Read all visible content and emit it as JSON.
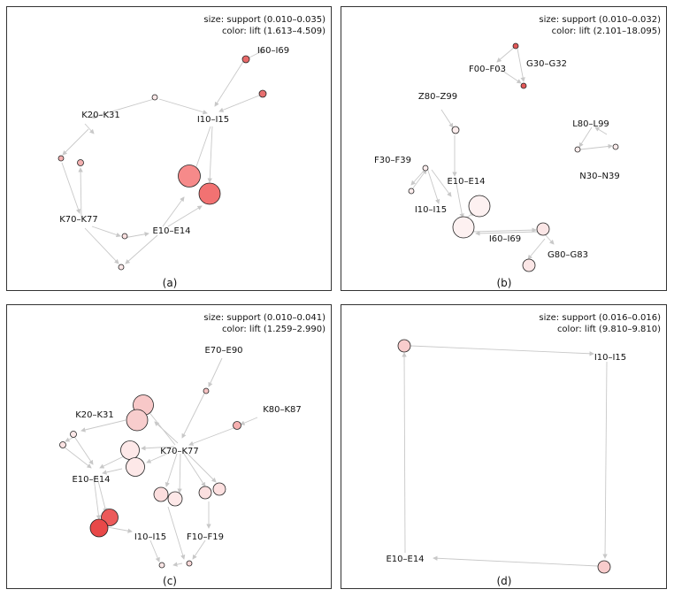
{
  "panels": [
    {
      "id": "a",
      "caption": "(a)",
      "legend": {
        "size": "size: support (0.010–0.035)",
        "color": "color: lift (1.613–4.509)"
      },
      "labels": [
        "I60–I69",
        "K20–K31",
        "I10–I15",
        "K70–K77",
        "E10–E14"
      ],
      "nodes": [
        {
          "c": "#e86a6a"
        },
        {
          "c": "#e87070"
        },
        {
          "c": "#fde8e8"
        },
        {
          "c": "#f4b1b1"
        },
        {
          "c": "#f3b0b0"
        },
        {
          "c": "#fbe0e0"
        },
        {
          "c": "#fde8e8"
        },
        {
          "c": "#f68a8a"
        },
        {
          "c": "#f27272"
        }
      ]
    },
    {
      "id": "b",
      "caption": "(b)",
      "legend": {
        "size": "size: support (0.010–0.032)",
        "color": "color: lift (2.101–18.095)"
      },
      "labels": [
        "F00–F03",
        "G30–G32",
        "Z80–Z99",
        "L80–L99",
        "F30–F39",
        "N30–N39",
        "E10–E14",
        "I10–I15",
        "I60–I69",
        "G80–G83"
      ],
      "nodes": [
        {
          "c": "#e25858"
        },
        {
          "c": "#e25858"
        },
        {
          "c": "#fcecec"
        },
        {
          "c": "#fcecec"
        },
        {
          "c": "#fcecec"
        },
        {
          "c": "#fcecec"
        },
        {
          "c": "#fcecec"
        },
        {
          "c": "#fdf1f1"
        },
        {
          "c": "#fdf1f1"
        },
        {
          "c": "#fbe6e6"
        },
        {
          "c": "#fbe6e6"
        }
      ]
    },
    {
      "id": "c",
      "caption": "(c)",
      "legend": {
        "size": "size: support (0.010–0.041)",
        "color": "color: lift (1.259–2.990)"
      },
      "labels": [
        "E70–E90",
        "K80–K87",
        "K20–K31",
        "K70–K77",
        "E10–E14",
        "I10–I15",
        "F10–F19"
      ],
      "nodes": [
        {
          "c": "#f6c2c2"
        },
        {
          "c": "#f6b0b0"
        },
        {
          "c": "#f8c8c8"
        },
        {
          "c": "#f8cdcd"
        },
        {
          "c": "#fde8e8"
        },
        {
          "c": "#fbe2e2"
        },
        {
          "c": "#fde8e8"
        },
        {
          "c": "#fde8e8"
        },
        {
          "c": "#fcdede"
        },
        {
          "c": "#fde8e8"
        },
        {
          "c": "#fbe0e0"
        },
        {
          "c": "#fde0e0"
        },
        {
          "c": "#ec5a5a"
        },
        {
          "c": "#e84848"
        },
        {
          "c": "#fbe6e6"
        },
        {
          "c": "#fbd8d8"
        }
      ]
    },
    {
      "id": "d",
      "caption": "(d)",
      "legend": {
        "size": "size: support (0.016–0.016)",
        "color": "color: lift (9.810–9.810)"
      },
      "labels": [
        "I10–I15",
        "E10–E14"
      ],
      "nodes": [
        {
          "c": "#f8cccc"
        },
        {
          "c": "#f8cccc"
        }
      ]
    }
  ]
}
